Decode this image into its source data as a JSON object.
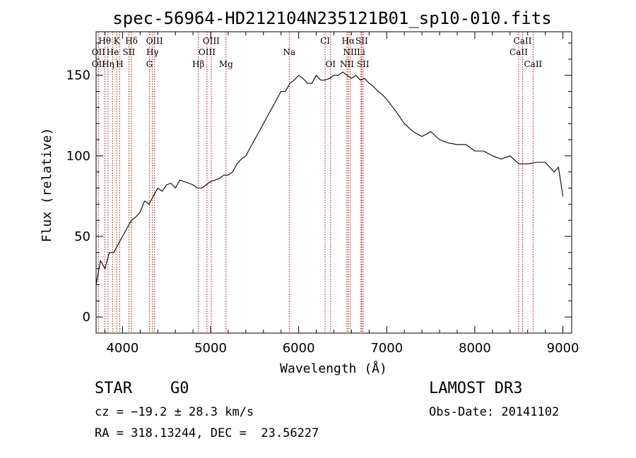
{
  "chart_data": {
    "type": "line",
    "title": "spec-56964-HD212104N235121B01_sp10-010.fits",
    "xlabel": "Wavelength (Å)",
    "ylabel": "Flux (relative)",
    "xlim": [
      3700,
      9100
    ],
    "ylim": [
      -10,
      177
    ],
    "xticks": [
      4000,
      5000,
      6000,
      7000,
      8000,
      9000
    ],
    "yticks": [
      0,
      50,
      100,
      150
    ],
    "series": [
      {
        "name": "flux",
        "x": [
          3700,
          3750,
          3800,
          3850,
          3900,
          3950,
          4000,
          4050,
          4100,
          4150,
          4200,
          4250,
          4300,
          4350,
          4400,
          4450,
          4500,
          4550,
          4600,
          4650,
          4700,
          4750,
          4800,
          4850,
          4900,
          4950,
          5000,
          5050,
          5100,
          5150,
          5200,
          5250,
          5300,
          5350,
          5400,
          5450,
          5500,
          5550,
          5600,
          5650,
          5700,
          5750,
          5800,
          5850,
          5900,
          5950,
          6000,
          6050,
          6100,
          6150,
          6200,
          6250,
          6300,
          6350,
          6400,
          6450,
          6500,
          6550,
          6600,
          6650,
          6700,
          6750,
          6800,
          6850,
          6900,
          6950,
          7000,
          7100,
          7200,
          7300,
          7400,
          7500,
          7600,
          7700,
          7800,
          7900,
          8000,
          8100,
          8200,
          8300,
          8400,
          8500,
          8600,
          8700,
          8800,
          8900,
          8950,
          9000
        ],
        "y": [
          20,
          35,
          30,
          40,
          40,
          45,
          50,
          55,
          60,
          62,
          65,
          72,
          70,
          75,
          80,
          78,
          82,
          83,
          80,
          85,
          84,
          83,
          82,
          80,
          80,
          82,
          84,
          85,
          86,
          88,
          88,
          90,
          95,
          98,
          100,
          105,
          110,
          115,
          120,
          125,
          130,
          135,
          140,
          140,
          145,
          147,
          150,
          148,
          145,
          145,
          150,
          147,
          147,
          148,
          150,
          150,
          152,
          150,
          148,
          150,
          147,
          148,
          145,
          143,
          140,
          138,
          135,
          128,
          120,
          115,
          112,
          115,
          110,
          108,
          107,
          107,
          103,
          103,
          100,
          98,
          100,
          95,
          95,
          96,
          96,
          90,
          93,
          75
        ]
      }
    ],
    "lines": [
      {
        "label": "Hθ",
        "wl": 3798,
        "row": 1
      },
      {
        "label": "K",
        "wl": 3934,
        "row": 1
      },
      {
        "label": "Hδ",
        "wl": 4102,
        "row": 1
      },
      {
        "label": "OIII",
        "wl": 4363,
        "row": 1
      },
      {
        "label": "OIII",
        "wl": 5007,
        "row": 1
      },
      {
        "label": "CI",
        "wl": 6300,
        "row": 1
      },
      {
        "label": "Hα",
        "wl": 6563,
        "row": 1
      },
      {
        "label": "SII",
        "wl": 6716,
        "row": 1
      },
      {
        "label": "CaII",
        "wl": 8542,
        "row": 1
      },
      {
        "label": "OII",
        "wl": 3727,
        "row": 2
      },
      {
        "label": "He",
        "wl": 3888,
        "row": 2
      },
      {
        "label": "SII",
        "wl": 4072,
        "row": 2
      },
      {
        "label": "Hγ",
        "wl": 4340,
        "row": 2
      },
      {
        "label": "OIII",
        "wl": 4959,
        "row": 2
      },
      {
        "label": "Na",
        "wl": 5893,
        "row": 2
      },
      {
        "label": "NII",
        "wl": 6584,
        "row": 2
      },
      {
        "label": "Li",
        "wl": 6708,
        "row": 2
      },
      {
        "label": "CaII",
        "wl": 8498,
        "row": 2
      },
      {
        "label": "OII",
        "wl": 3727,
        "row": 3
      },
      {
        "label": "Hη",
        "wl": 3835,
        "row": 3
      },
      {
        "label": "H",
        "wl": 3968,
        "row": 3
      },
      {
        "label": "G",
        "wl": 4305,
        "row": 3
      },
      {
        "label": "Hβ",
        "wl": 4861,
        "row": 3
      },
      {
        "label": "Mg",
        "wl": 5175,
        "row": 3
      },
      {
        "label": "OI",
        "wl": 6363,
        "row": 3
      },
      {
        "label": "NII",
        "wl": 6548,
        "row": 3
      },
      {
        "label": "SII",
        "wl": 6731,
        "row": 3
      },
      {
        "label": "CaII",
        "wl": 8662,
        "row": 3
      }
    ]
  },
  "info": {
    "object_class": "STAR",
    "subclass": "G0",
    "survey": "LAMOST DR3",
    "redshift_line": "cz = −19.2 ± 28.3 km/s",
    "obs_date": "Obs-Date: 20141102",
    "coords": "RA = 318.13244, DEC =  23.56227"
  },
  "colors": {
    "spectrum": "#000000",
    "line_marker": "#cc0000",
    "axis": "#000000"
  }
}
